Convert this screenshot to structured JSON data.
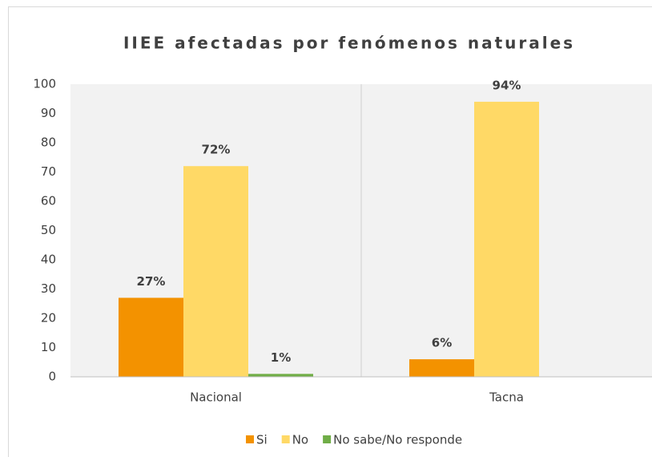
{
  "chart_data": {
    "type": "bar",
    "title": "IIEE afectadas por fenómenos naturales",
    "categories": [
      "Nacional",
      "Tacna"
    ],
    "series": [
      {
        "name": "Si",
        "color": "#f39200",
        "values": [
          27,
          6
        ],
        "value_labels": [
          "27%",
          "6%"
        ]
      },
      {
        "name": "No",
        "color": "#ffd966",
        "values": [
          72,
          94
        ],
        "value_labels": [
          "72%",
          "94%"
        ]
      },
      {
        "name": "No sabe/No responde",
        "color": "#70ad47",
        "values": [
          1,
          null
        ],
        "value_labels": [
          "1%",
          null
        ]
      }
    ],
    "ylim": [
      0,
      100
    ],
    "yticks": [
      0,
      10,
      20,
      30,
      40,
      50,
      60,
      70,
      80,
      90,
      100
    ],
    "grid": false,
    "legend": "bottom"
  }
}
